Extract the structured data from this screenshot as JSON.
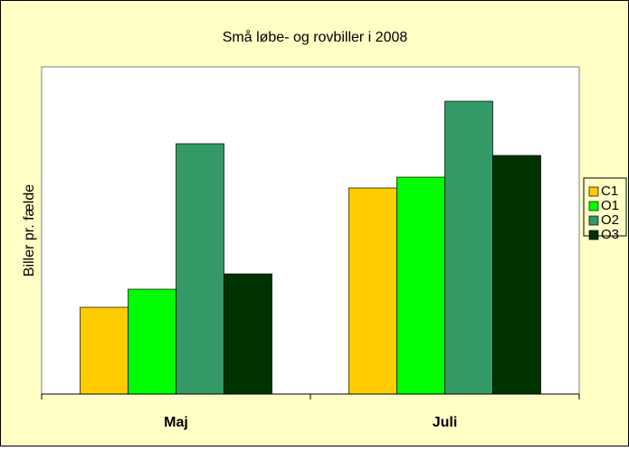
{
  "chart_data": {
    "type": "bar",
    "title": "Små løbe- og rovbiller i 2008",
    "y_label": "Biller pr. fælde",
    "categories": [
      "Maj",
      "Juli"
    ],
    "series": [
      {
        "name": "C1",
        "color": "#FFCC00",
        "values": [
          96,
          228
        ]
      },
      {
        "name": "O1",
        "color": "#00FF00",
        "values": [
          116,
          240
        ]
      },
      {
        "name": "O2",
        "color": "#339966",
        "values": [
          277,
          324
        ]
      },
      {
        "name": "O3",
        "color": "#003300",
        "values": [
          133,
          264
        ]
      }
    ],
    "ylim": [
      0,
      362
    ],
    "legend": "right"
  }
}
